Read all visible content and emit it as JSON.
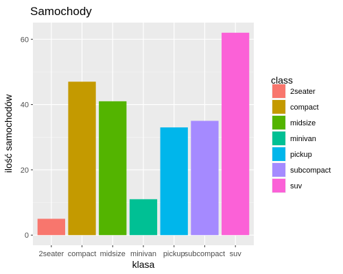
{
  "chart_data": {
    "type": "bar",
    "title": "Samochody",
    "xlabel": "klasa",
    "ylabel": "ilość samochodów",
    "categories": [
      "2seater",
      "compact",
      "midsize",
      "minivan",
      "pickup",
      "subcompact",
      "suv"
    ],
    "values": [
      5,
      47,
      41,
      11,
      33,
      35,
      62
    ],
    "colors": [
      "#F8766D",
      "#C49A00",
      "#53B400",
      "#00C094",
      "#00B6EB",
      "#A58AFF",
      "#FB61D7"
    ],
    "yticks": [
      0,
      20,
      40,
      60
    ],
    "ylim": [
      -3.1,
      65.1
    ],
    "grid": true,
    "legend": {
      "title": "class",
      "placement": "right",
      "items": [
        "2seater",
        "compact",
        "midsize",
        "minivan",
        "pickup",
        "subcompact",
        "suv"
      ]
    }
  }
}
